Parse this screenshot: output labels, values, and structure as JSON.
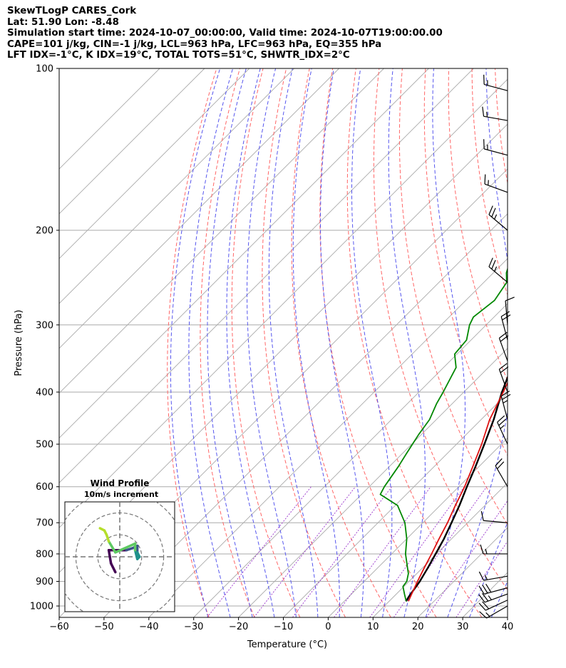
{
  "header": {
    "line1": "SkewTLogP CARES_Cork",
    "line2": "Lat: 51.90   Lon: -8.48",
    "line3": "Simulation start time: 2024-10-07_00:00:00, Valid time: 2024-10-07T19:00:00.00",
    "line4": "CAPE=101 j/kg, CIN=-1 j/kg, LCL=963 hPa, LFC=963 hPa, EQ=355 hPa",
    "line5": "LFT IDX=-1°C, K IDX=19°C, TOTAL TOTS=51°C, SHWTR_IDX=2°C"
  },
  "colors": {
    "temperature": "#dd1111",
    "dewpoint": "#008800",
    "parcel": "#000000",
    "cape_fill": "#a4c6e0",
    "dry_adiabat": "#ff6666",
    "moist_adiabat": "#5555ee",
    "mixing_ratio": "#9933cc",
    "isotherm": "#aaaaaa",
    "hodograph_colors": [
      "#440154",
      "#3b528b",
      "#21918c",
      "#5ec962",
      "#b5de2b"
    ]
  },
  "chart_data": {
    "type": "line",
    "subtype": "skew-T log-P",
    "xlabel": "Temperature (°C)",
    "ylabel": "Pressure (hPa)",
    "xlim": [
      -60,
      40
    ],
    "ylim": [
      1050,
      100
    ],
    "yscale": "log",
    "xticks": [
      "−60",
      "−50",
      "−40",
      "−30",
      "−20",
      "−10",
      "0",
      "10",
      "20",
      "30",
      "40"
    ],
    "xtick_values": [
      -60,
      -50,
      -40,
      -30,
      -20,
      -10,
      0,
      10,
      20,
      30,
      40
    ],
    "yticks": [
      "100",
      "200",
      "300",
      "400",
      "500",
      "600",
      "700",
      "800",
      "900",
      "1000"
    ],
    "ytick_values": [
      100,
      200,
      300,
      400,
      500,
      600,
      700,
      800,
      900,
      1000
    ],
    "grid": true,
    "series": [
      {
        "key": "temperature",
        "points": [
          [
            980,
            14.3
          ],
          [
            950,
            13.4
          ],
          [
            900,
            11.9
          ],
          [
            850,
            10.4
          ],
          [
            800,
            8.9
          ],
          [
            750,
            7.2
          ],
          [
            700,
            5.5
          ],
          [
            650,
            3.4
          ],
          [
            600,
            1.3
          ],
          [
            550,
            -1.4
          ],
          [
            500,
            -4.4
          ],
          [
            450,
            -8.1
          ],
          [
            400,
            -11.2
          ],
          [
            350,
            -14.9
          ],
          [
            320,
            -17.5
          ],
          [
            300,
            -17.8
          ],
          [
            280,
            -17.5
          ],
          [
            270,
            -18.1
          ],
          [
            250,
            -18.9
          ],
          [
            230,
            -19.5
          ],
          [
            210,
            -20.3
          ],
          [
            200,
            -20.7
          ],
          [
            185,
            -20.9
          ],
          [
            170,
            -21.3
          ],
          [
            150,
            -22.3
          ],
          [
            135,
            -21.9
          ],
          [
            120,
            -21.9
          ],
          [
            108,
            -22.1
          ],
          [
            100,
            -22.9
          ]
        ]
      },
      {
        "key": "dewpoint",
        "points": [
          [
            980,
            13.8
          ],
          [
            950,
            11.8
          ],
          [
            920,
            9.8
          ],
          [
            900,
            9.5
          ],
          [
            870,
            8.1
          ],
          [
            850,
            6.7
          ],
          [
            800,
            3.1
          ],
          [
            750,
            0.0
          ],
          [
            700,
            -4.0
          ],
          [
            650,
            -9.5
          ],
          [
            620,
            -15.8
          ],
          [
            600,
            -16.6
          ],
          [
            550,
            -18.0
          ],
          [
            520,
            -19.1
          ],
          [
            480,
            -20.6
          ],
          [
            450,
            -21.5
          ],
          [
            420,
            -23.5
          ],
          [
            400,
            -24.6
          ],
          [
            360,
            -27.2
          ],
          [
            340,
            -30.5
          ],
          [
            320,
            -31.0
          ],
          [
            300,
            -33.7
          ],
          [
            290,
            -34.6
          ],
          [
            270,
            -33.6
          ],
          [
            250,
            -34.9
          ],
          [
            240,
            -37.1
          ],
          [
            220,
            -40.2
          ],
          [
            200,
            -42.6
          ],
          [
            185,
            -43.3
          ],
          [
            170,
            -42.2
          ],
          [
            155,
            -41.3
          ],
          [
            140,
            -39.5
          ],
          [
            120,
            -36.9
          ],
          [
            100,
            -34.8
          ]
        ]
      },
      {
        "key": "parcel",
        "points": [
          [
            980,
            13.8
          ],
          [
            963,
            13.4
          ],
          [
            900,
            12.4
          ],
          [
            850,
            11.2
          ],
          [
            800,
            9.8
          ],
          [
            750,
            8.3
          ],
          [
            700,
            6.4
          ],
          [
            650,
            4.3
          ],
          [
            600,
            1.8
          ],
          [
            550,
            -0.8
          ],
          [
            500,
            -3.8
          ],
          [
            450,
            -7.2
          ],
          [
            400,
            -11.5
          ],
          [
            355,
            -15.3
          ],
          [
            300,
            -21.8
          ],
          [
            250,
            -30.0
          ],
          [
            200,
            -41.0
          ],
          [
            150,
            -55.0
          ],
          [
            100,
            -75.0
          ]
        ]
      }
    ],
    "wind_barbs": [
      {
        "p": 1000,
        "speed_kt": 15,
        "dir_deg": 240
      },
      {
        "p": 975,
        "speed_kt": 20,
        "dir_deg": 245
      },
      {
        "p": 950,
        "speed_kt": 25,
        "dir_deg": 250
      },
      {
        "p": 925,
        "speed_kt": 30,
        "dir_deg": 255
      },
      {
        "p": 880,
        "speed_kt": 15,
        "dir_deg": 260
      },
      {
        "p": 800,
        "speed_kt": 15,
        "dir_deg": 270
      },
      {
        "p": 700,
        "speed_kt": 10,
        "dir_deg": 275
      },
      {
        "p": 600,
        "speed_kt": 20,
        "dir_deg": 330
      },
      {
        "p": 500,
        "speed_kt": 25,
        "dir_deg": 335
      },
      {
        "p": 450,
        "speed_kt": 25,
        "dir_deg": 345
      },
      {
        "p": 400,
        "speed_kt": 20,
        "dir_deg": 340
      },
      {
        "p": 350,
        "speed_kt": 20,
        "dir_deg": 340
      },
      {
        "p": 320,
        "speed_kt": 20,
        "dir_deg": 345
      },
      {
        "p": 300,
        "speed_kt": 10,
        "dir_deg": 355
      },
      {
        "p": 250,
        "speed_kt": 25,
        "dir_deg": 310
      },
      {
        "p": 200,
        "speed_kt": 25,
        "dir_deg": 310
      },
      {
        "p": 170,
        "speed_kt": 15,
        "dir_deg": 290
      },
      {
        "p": 145,
        "speed_kt": 15,
        "dir_deg": 285
      },
      {
        "p": 125,
        "speed_kt": 15,
        "dir_deg": 280
      },
      {
        "p": 110,
        "speed_kt": 15,
        "dir_deg": 285
      }
    ],
    "hodograph": {
      "title": "Wind Profile",
      "subtitle": "10m/s increment",
      "rings_ms": [
        10,
        20,
        30
      ],
      "range_ms": 25,
      "points": [
        [
          -2,
          -7
        ],
        [
          -4,
          -3
        ],
        [
          -5,
          3
        ],
        [
          -3,
          3
        ],
        [
          3,
          3
        ],
        [
          6,
          4
        ],
        [
          8,
          5
        ],
        [
          8,
          2
        ],
        [
          9,
          0
        ],
        [
          8,
          -1
        ],
        [
          7,
          3
        ],
        [
          7,
          6
        ],
        [
          -2,
          2
        ],
        [
          -5,
          7
        ],
        [
          -6,
          10
        ],
        [
          -7,
          12
        ],
        [
          -9,
          13
        ]
      ]
    }
  }
}
